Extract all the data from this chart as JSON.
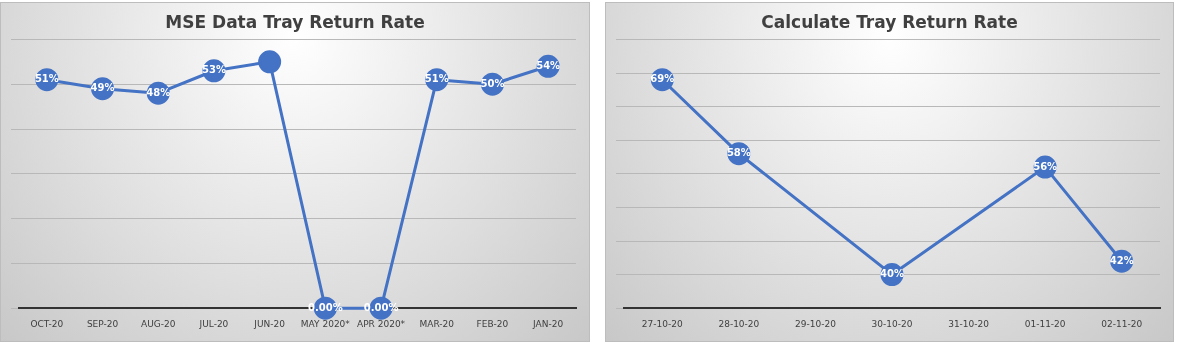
{
  "chart_data": [
    {
      "type": "line",
      "title": "MSE Data Tray Return Rate",
      "categories": [
        "OCT-20",
        "SEP-20",
        "AUG-20",
        "JUL-20",
        "JUN-20",
        "MAY 2020*",
        "APR 2020*",
        "MAR-20",
        "FEB-20",
        "JAN-20"
      ],
      "series": [
        {
          "color": "#4472c4",
          "values": [
            51,
            49,
            48,
            53,
            55,
            0,
            0,
            51,
            50,
            54
          ],
          "value_labels": [
            "51%",
            "49%",
            "48%",
            "53%",
            null,
            "0.00%",
            "0.00%",
            "51%",
            "50%",
            "54%"
          ]
        }
      ],
      "marker": "circle",
      "grid": "y",
      "legend": false,
      "tick_labels": "x"
    },
    {
      "type": "line",
      "title": "Calculate Tray Return Rate",
      "categories": [
        "27-10-20",
        "28-10-20",
        "29-10-20",
        "30-10-20",
        "31-10-20",
        "01-11-20",
        "02-11-20"
      ],
      "series": [
        {
          "color": "#4472c4",
          "values": [
            69,
            58,
            null,
            40,
            null,
            56,
            42
          ],
          "value_labels": [
            "69%",
            "58%",
            null,
            "40%",
            null,
            "56%",
            "42%"
          ]
        }
      ],
      "marker": "circle",
      "grid": "y",
      "legend": false,
      "tick_labels": "x"
    }
  ]
}
